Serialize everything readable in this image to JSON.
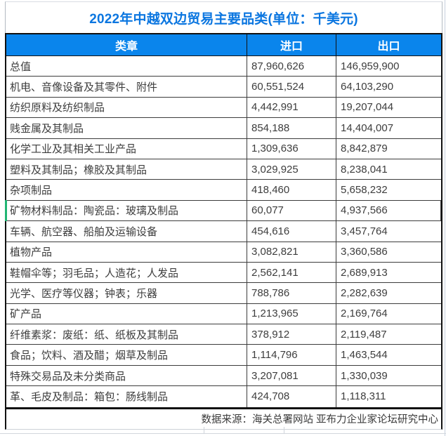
{
  "title": "2022年中越双边贸易主要品类(单位：千美元)",
  "colors": {
    "accent_blue": "#0a85ec",
    "title_blue": "#0b76e0",
    "header_text": "#ffffff",
    "body_text": "#3d3d3d",
    "green_marker": "#21b573"
  },
  "decorations": {
    "green_marker_row_index": 7
  },
  "chart_data": {
    "type": "table",
    "title": "2022年中越双边贸易主要品类(单位：千美元)",
    "columns": [
      "类章",
      "进口",
      "出口"
    ],
    "rows": [
      {
        "category": "总值",
        "import_value": "87,960,626",
        "export_value": "146,959,900"
      },
      {
        "category": "机电、音像设备及其零件、附件",
        "import_value": "60,551,524",
        "export_value": "64,103,290"
      },
      {
        "category": "纺织原料及纺织制品",
        "import_value": "4,442,991",
        "export_value": "19,207,044"
      },
      {
        "category": "贱金属及其制品",
        "import_value": "854,188",
        "export_value": "14,404,007"
      },
      {
        "category": "化学工业及其相关工业产品",
        "import_value": "1,309,636",
        "export_value": "8,842,879"
      },
      {
        "category": "塑料及其制品；橡胶及其制品",
        "import_value": "3,029,925",
        "export_value": "8,238,041"
      },
      {
        "category": "杂项制品",
        "import_value": "418,460",
        "export_value": "5,658,232"
      },
      {
        "category": "矿物材料制品：陶瓷品：玻璃及制品",
        "import_value": "60,077",
        "export_value": "4,937,566"
      },
      {
        "category": "车辆、航空器、船舶及运输设备",
        "import_value": "454,616",
        "export_value": "3,457,764"
      },
      {
        "category": "植物产品",
        "import_value": "3,082,821",
        "export_value": "3,360,586"
      },
      {
        "category": "鞋帽伞等；羽毛品；人造花；人发品",
        "import_value": "2,562,141",
        "export_value": "2,689,913"
      },
      {
        "category": "光学、医疗等仪器；钟表；乐器",
        "import_value": "788,786",
        "export_value": "2,282,639"
      },
      {
        "category": "矿产品",
        "import_value": "1,213,965",
        "export_value": "2,169,764"
      },
      {
        "category": "纤维素浆：废纸：纸、纸板及其制品",
        "import_value": "378,912",
        "export_value": "2,119,487"
      },
      {
        "category": "食品；饮料、酒及醋；烟草及制品",
        "import_value": "1,114,796",
        "export_value": "1,463,544"
      },
      {
        "category": "特殊交易品及未分类商品",
        "import_value": "3,207,081",
        "export_value": "1,330,039"
      },
      {
        "category": "革、毛皮及制品：箱包：肠线制品",
        "import_value": "424,708",
        "export_value": "1,118,311"
      }
    ],
    "source": "数据来源：海关总署网站 亚布力企业家论坛研究中心"
  }
}
